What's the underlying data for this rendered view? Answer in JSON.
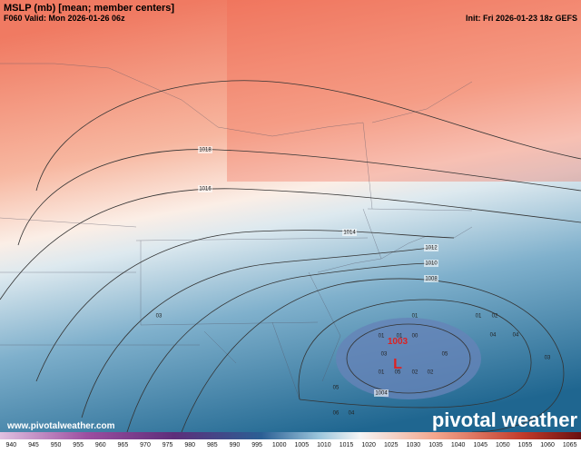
{
  "header": {
    "title": "MSLP (mb) [mean; member centers]",
    "valid": "F060 Valid: Mon 2026-01-26 06z",
    "init": "Init: Fri 2026-01-23 18z GEFS"
  },
  "contour_labels": [
    "1018",
    "1016",
    "1014",
    "1012",
    "1010",
    "1008",
    "1004"
  ],
  "low_center": {
    "value": "1003",
    "symbol": "L"
  },
  "member_centers": [
    "03",
    "01",
    "02",
    "01",
    "01",
    "00",
    "04",
    "04",
    "01",
    "03",
    "05",
    "03",
    "01",
    "05",
    "02",
    "02",
    "05",
    "06",
    "04"
  ],
  "colorbar": [
    "940",
    "945",
    "950",
    "955",
    "960",
    "965",
    "970",
    "975",
    "980",
    "985",
    "990",
    "995",
    "1000",
    "1005",
    "1010",
    "1015",
    "1020",
    "1025",
    "1030",
    "1035",
    "1040",
    "1045",
    "1050",
    "1055",
    "1060",
    "1065"
  ],
  "footer": {
    "url": "www.pivotalweather.com",
    "brand": "pivotal weather"
  }
}
